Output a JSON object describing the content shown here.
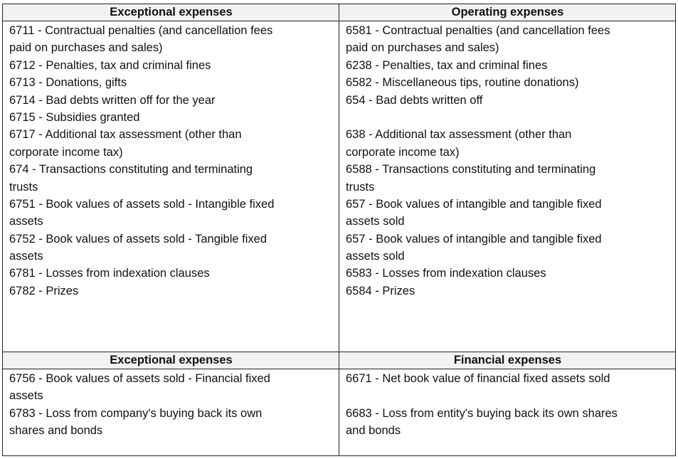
{
  "table": {
    "sections": [
      {
        "headers": [
          "Exceptional expenses",
          "Operating expenses"
        ],
        "left": [
          "6711 - Contractual penalties (and cancellation fees",
          "paid on purchases and sales)",
          "6712 - Penalties, tax and criminal fines",
          "6713 - Donations, gifts",
          "6714 - Bad debts written off for the year",
          "6715 - Subsidies granted",
          "6717 - Additional tax assessment (other than",
          "corporate income tax)",
          "674 - Transactions constituting and terminating",
          "trusts",
          "6751 - Book values of assets sold - Intangible fixed",
          "assets",
          "6752 - Book values of assets sold  - Tangible fixed",
          "assets",
          "6781 - Losses from indexation clauses",
          "6782 - Prizes"
        ],
        "right": [
          "6581 - Contractual penalties (and cancellation fees",
          "paid on purchases and sales)",
          "6238 - Penalties, tax and criminal fines",
          "6582 - Miscellaneous tips, routine donations)",
          "654 - Bad debts written off",
          "",
          "638 - Additional tax assessment (other than",
          "corporate income tax)",
          "6588 - Transactions constituting and terminating",
          "trusts",
          "657 - Book values of intangible and tangible fixed",
          "assets sold",
          "657 - Book values of intangible and tangible fixed",
          "assets sold",
          "6583 - Losses from indexation clauses",
          "6584 - Prizes"
        ]
      },
      {
        "headers": [
          "Exceptional expenses",
          "Financial expenses"
        ],
        "left": [
          "6756 - Book values of assets sold - Financial fixed",
          "assets",
          "6783 - Loss from company's buying back its own",
          "shares and bonds"
        ],
        "right": [
          "6671 - Net book value of financial fixed assets sold",
          "",
          "6683 - Loss from entity's buying back its own shares",
          "and bonds"
        ]
      }
    ]
  }
}
